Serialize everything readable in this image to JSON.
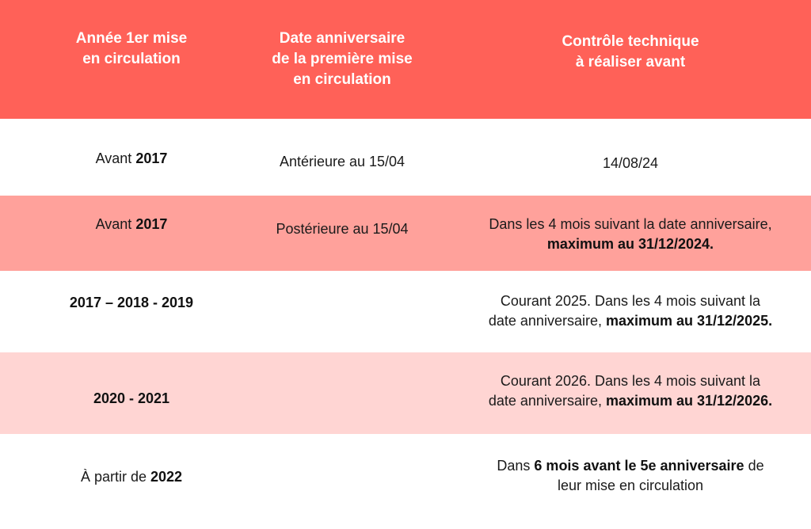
{
  "header": {
    "col1": [
      "Année 1er mise",
      "en circulation"
    ],
    "col2": [
      "Date anniversaire",
      "de la première mise",
      "en circulation"
    ],
    "col3": [
      "Contrôle technique",
      "à réaliser avant"
    ]
  },
  "rows": [
    {
      "year_prefix": "Avant ",
      "year_bold": "2017",
      "date": "Antérieure au 15/04",
      "control_plain": "14/08/24"
    },
    {
      "year_prefix": "Avant ",
      "year_bold": "2017",
      "date": "Postérieure au 15/04",
      "control_line1": "Dans les 4 mois suivant la date anniversaire,",
      "control_bold": "maximum au 31/12/2024."
    },
    {
      "year_bold": "2017 – 2018 - 2019",
      "date": "",
      "control_line1": "Courant 2025. Dans les 4 mois suivant la",
      "control_line2_plain": "date anniversaire, ",
      "control_bold": "maximum au 31/12/2025."
    },
    {
      "year_bold": "2020 - 2021",
      "date": "",
      "control_line1": "Courant 2026. Dans les 4 mois suivant la",
      "control_line2_plain": "date anniversaire, ",
      "control_bold": "maximum au 31/12/2026."
    },
    {
      "year_prefix": "À partir de ",
      "year_bold": "2022",
      "date": "",
      "control_pre": "Dans ",
      "control_bold": "6 mois avant le 5e anniversaire",
      "control_post": " de",
      "control_line2_plain": "leur mise en circulation"
    }
  ],
  "colors": {
    "header_bg": "#ff6158",
    "row_alt_strong": "#ffa19b",
    "row_alt_light": "#ffd5d3",
    "row_white": "#ffffff"
  }
}
